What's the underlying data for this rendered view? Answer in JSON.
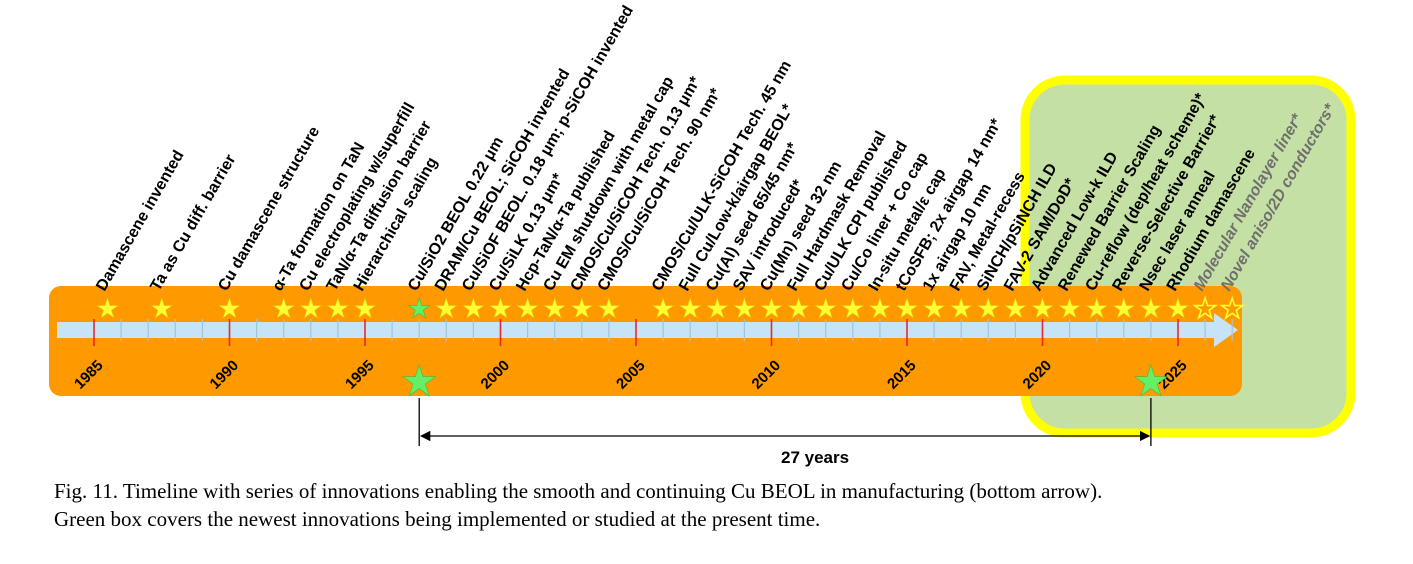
{
  "colors": {
    "bar": "#ff9900",
    "arrow": "#c6e3f7",
    "tick": "#a6c3d6",
    "major_tick": "#e8282a",
    "star": "#ffff33",
    "star_green": "#66ee66",
    "box_fill": "#c5e0a4",
    "box_border": "#ffff00"
  },
  "years": [
    "1985",
    "1990",
    "1995",
    "2000",
    "2005",
    "2010",
    "2015",
    "2020",
    "2025"
  ],
  "events": [
    {
      "label": "Damascene invented",
      "year": 1985.5
    },
    {
      "label": "Ta as Cu diff. barrier",
      "year": 1987.5
    },
    {
      "label": "Cu damascene structure",
      "year": 1990
    },
    {
      "label": "α-Ta formation on TaN",
      "year": 1992
    },
    {
      "label": "Cu electroplating w/superfill",
      "year": 1993
    },
    {
      "label": "TaN/α-Ta diffusion barrier",
      "year": 1994
    },
    {
      "label": "Hierarchical scaling",
      "year": 1995
    },
    {
      "label": "Cu/SiO2 BEOL 0.22 μm",
      "year": 1997,
      "green": true
    },
    {
      "label": "DRAM/Cu BEOL; SiCOH invented",
      "year": 1998
    },
    {
      "label": "Cu/SiOF BEOL. 0.18 μm; p-SiCOH invented",
      "year": 1999
    },
    {
      "label": "Cu/SiLK 0.13 μm*",
      "year": 2000
    },
    {
      "label": "Hcp-TaN/α-Ta published",
      "year": 2001
    },
    {
      "label": "Cu EM shutdown with metal cap",
      "year": 2002
    },
    {
      "label": "CMOS/Cu/SiCOH Tech. 0.13 μm*",
      "year": 2003
    },
    {
      "label": "CMOS/Cu/SiCOH Tech. 90 nm*",
      "year": 2004
    },
    {
      "label": "CMOS/Cu/ULK-SiCOH Tech. 45 nm",
      "year": 2006
    },
    {
      "label": "Full Cu/Low-k/airgap BEOL*",
      "year": 2007
    },
    {
      "label": "Cu(Al) seed 65/45 nm*",
      "year": 2008
    },
    {
      "label": "SAV introduced*",
      "year": 2009
    },
    {
      "label": "Cu(Mn) seed 32 nm",
      "year": 2010
    },
    {
      "label": "Full Hardmask Removal",
      "year": 2011
    },
    {
      "label": "Cu/ULK CPI published",
      "year": 2012
    },
    {
      "label": "Cu/Co liner + Co cap",
      "year": 2013
    },
    {
      "label": "In-situ metal/ε cap",
      "year": 2014
    },
    {
      "label": "tCoSFB; 2x airgap 14 nm*",
      "year": 2015
    },
    {
      "label": "1x airgap 10 nm",
      "year": 2016
    },
    {
      "label": "FAV, Metal-recess",
      "year": 2017
    },
    {
      "label": "SiNCH/pSiNCH ILD",
      "year": 2018
    },
    {
      "label": "FAV-2 SAM/DoD*",
      "year": 2019
    },
    {
      "label": "Advanced Low-k ILD",
      "year": 2020
    },
    {
      "label": "Renewed Barrier Scaling",
      "year": 2021
    },
    {
      "label": "Cu-reflow (dep/heat scheme)*",
      "year": 2022
    },
    {
      "label": "Reverse-Selective Barrier*",
      "year": 2023
    },
    {
      "label": "Nsec laser anneal",
      "year": 2024
    },
    {
      "label": "Rhodium damascene",
      "year": 2025
    },
    {
      "label": "Molecular Nanolayer liner*",
      "year": 2026,
      "future": true
    },
    {
      "label": "Novel aniso/2D conductors*",
      "year": 2027,
      "future": true
    }
  ],
  "span": {
    "label": "27 years",
    "start": 1997,
    "end": 2024
  },
  "caption": {
    "line1": "Fig. 11.  Timeline with series of innovations enabling the smooth and continuing Cu BEOL in manufacturing (bottom arrow).",
    "line2": "Green box covers the newest innovations being implemented or studied at the present time."
  }
}
